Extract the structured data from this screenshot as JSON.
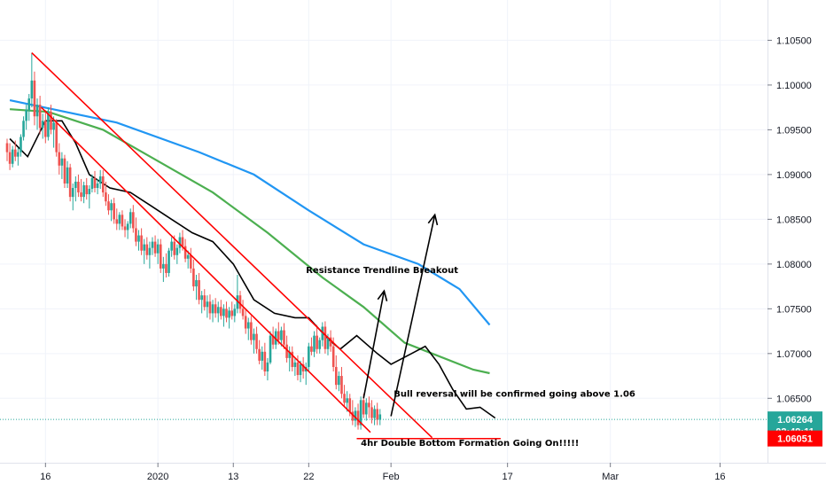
{
  "chart_data": {
    "type": "candlestick",
    "instrument_hint": "price chart with moving averages and trendlines",
    "x_axis": {
      "tick_labels": [
        "16",
        "2020",
        "13",
        "22",
        "Feb",
        "17",
        "Mar",
        "16"
      ]
    },
    "y_axis": {
      "ylim": [
        1.0578,
        1.1095
      ],
      "tick_labels": [
        "1.10500",
        "1.10000",
        "1.09500",
        "1.09000",
        "1.08500",
        "1.08000",
        "1.07500",
        "1.07000",
        "1.06500"
      ],
      "tick_values": [
        1.105,
        1.1,
        1.095,
        1.09,
        1.085,
        1.08,
        1.075,
        1.07,
        1.065
      ]
    },
    "price_badges": [
      {
        "label": "1.06264",
        "value": 1.06264,
        "color": "#26a69a"
      },
      {
        "label": "02:49:11",
        "value": 1.0613,
        "color": "#26a69a"
      },
      {
        "label": "1.06051",
        "value": 1.06051,
        "color": "#ff0000"
      }
    ],
    "moving_averages": [
      {
        "color": "#2196f3",
        "points": [
          [
            0.2,
            1.0983
          ],
          [
            8,
            1.0958
          ],
          [
            14,
            1.0925
          ],
          [
            18,
            1.09
          ],
          [
            22,
            1.086
          ],
          [
            26,
            1.0822
          ],
          [
            30,
            1.08
          ],
          [
            33,
            1.0772
          ],
          [
            35.2,
            1.0732
          ]
        ]
      },
      {
        "color": "#4caf50",
        "points": [
          [
            0.2,
            1.0973
          ],
          [
            3,
            1.097
          ],
          [
            7,
            1.095
          ],
          [
            11,
            1.0915
          ],
          [
            15,
            1.088
          ],
          [
            19,
            1.0835
          ],
          [
            23,
            1.0785
          ],
          [
            26,
            1.0752
          ],
          [
            29,
            1.0712
          ],
          [
            31,
            1.07
          ],
          [
            34,
            1.0682
          ],
          [
            35.2,
            1.0678
          ]
        ]
      },
      {
        "color": "#000000",
        "points": [
          [
            0.2,
            1.094
          ],
          [
            1.5,
            1.092
          ],
          [
            2.8,
            1.096
          ],
          [
            4,
            1.096
          ],
          [
            5,
            1.0935
          ],
          [
            6,
            1.09
          ],
          [
            7.5,
            1.0885
          ],
          [
            9,
            1.088
          ],
          [
            10.5,
            1.0865
          ],
          [
            12,
            1.085
          ],
          [
            13.5,
            1.0835
          ],
          [
            15,
            1.0825
          ],
          [
            16.5,
            1.08
          ],
          [
            18,
            1.076
          ],
          [
            19.5,
            1.0745
          ],
          [
            21,
            1.074
          ],
          [
            22,
            1.074
          ],
          [
            23.5,
            1.0715
          ],
          [
            24.3,
            1.0705
          ],
          [
            25.5,
            1.072
          ],
          [
            27,
            1.07
          ],
          [
            28,
            1.0688
          ],
          [
            29.5,
            1.07
          ],
          [
            30.5,
            1.0708
          ],
          [
            31.5,
            1.0688
          ],
          [
            32.5,
            1.066
          ],
          [
            33.5,
            1.0638
          ],
          [
            34.5,
            1.064
          ],
          [
            35.6,
            1.0628
          ]
        ]
      }
    ],
    "candles": [
      [
        0.0,
        1.0935,
        1.094,
        1.0915,
        1.0925
      ],
      [
        0.2,
        1.0925,
        1.0935,
        1.0905,
        1.0912
      ],
      [
        0.4,
        1.0912,
        1.0932,
        1.0908,
        1.0928
      ],
      [
        0.6,
        1.0928,
        1.0938,
        1.0915,
        1.092
      ],
      [
        0.8,
        1.092,
        1.093,
        1.091,
        1.0925
      ],
      [
        1.0,
        1.0925,
        1.0945,
        1.092,
        1.0942
      ],
      [
        1.2,
        1.0942,
        1.0965,
        1.0938,
        1.096
      ],
      [
        1.4,
        1.096,
        1.0978,
        1.095,
        1.0972
      ],
      [
        1.6,
        1.0972,
        1.099,
        1.096,
        1.0985
      ],
      [
        1.8,
        1.0985,
        1.1036,
        1.0975,
        1.1005
      ],
      [
        2.0,
        1.1005,
        1.1015,
        1.0955,
        1.0965
      ],
      [
        2.2,
        1.0965,
        1.0985,
        1.095,
        1.0978
      ],
      [
        2.4,
        1.0978,
        1.0988,
        1.0945,
        1.0952
      ],
      [
        2.6,
        1.0952,
        1.0968,
        1.094,
        1.096
      ],
      [
        2.8,
        1.096,
        1.0972,
        1.0935,
        1.0942
      ],
      [
        3.0,
        1.0942,
        1.0975,
        1.0938,
        1.097
      ],
      [
        3.2,
        1.097,
        1.0978,
        1.0945,
        1.095
      ],
      [
        3.4,
        1.095,
        1.0965,
        1.093,
        1.0958
      ],
      [
        3.6,
        1.0958,
        1.0962,
        1.092,
        1.0925
      ],
      [
        3.8,
        1.0925,
        1.0935,
        1.09,
        1.091
      ],
      [
        4.0,
        1.091,
        1.0925,
        1.0895,
        1.0918
      ],
      [
        4.2,
        1.0918,
        1.0922,
        1.0885,
        1.089
      ],
      [
        4.4,
        1.089,
        1.0915,
        1.0885,
        1.0908
      ],
      [
        4.6,
        1.0908,
        1.0912,
        1.087,
        1.0875
      ],
      [
        4.8,
        1.0875,
        1.089,
        1.086,
        1.0885
      ],
      [
        5.0,
        1.0885,
        1.0898,
        1.087,
        1.0892
      ],
      [
        5.2,
        1.0892,
        1.09,
        1.0875,
        1.088
      ],
      [
        5.4,
        1.088,
        1.0895,
        1.087,
        1.0875
      ],
      [
        5.6,
        1.0875,
        1.0892,
        1.0868,
        1.0888
      ],
      [
        5.8,
        1.0888,
        1.0896,
        1.0872,
        1.0878
      ],
      [
        6.0,
        1.0878,
        1.0888,
        1.0862,
        1.0884
      ],
      [
        6.2,
        1.0884,
        1.09,
        1.088,
        1.0896
      ],
      [
        6.4,
        1.0896,
        1.0904,
        1.088,
        1.0885
      ],
      [
        6.6,
        1.0885,
        1.0895,
        1.0878,
        1.089
      ],
      [
        6.8,
        1.089,
        1.0905,
        1.0884,
        1.0898
      ],
      [
        7.0,
        1.0898,
        1.0905,
        1.0875,
        1.088
      ],
      [
        7.2,
        1.088,
        1.0892,
        1.0865,
        1.087
      ],
      [
        7.4,
        1.087,
        1.0878,
        1.0855,
        1.086
      ],
      [
        7.6,
        1.086,
        1.0872,
        1.0848,
        1.0868
      ],
      [
        7.8,
        1.0868,
        1.0874,
        1.0845,
        1.085
      ],
      [
        8.0,
        1.085,
        1.0862,
        1.0838,
        1.0845
      ],
      [
        8.2,
        1.0845,
        1.0858,
        1.0838,
        1.0855
      ],
      [
        8.4,
        1.0855,
        1.086,
        1.0838,
        1.0842
      ],
      [
        8.6,
        1.0842,
        1.085,
        1.083,
        1.0838
      ],
      [
        8.8,
        1.0838,
        1.0848,
        1.0828,
        1.0845
      ],
      [
        9.0,
        1.0845,
        1.0862,
        1.084,
        1.0858
      ],
      [
        9.2,
        1.0858,
        1.0866,
        1.0835,
        1.084
      ],
      [
        9.4,
        1.084,
        1.0852,
        1.082,
        1.0825
      ],
      [
        9.6,
        1.0825,
        1.0838,
        1.0815,
        1.0832
      ],
      [
        9.8,
        1.0832,
        1.084,
        1.081,
        1.0815
      ],
      [
        10.0,
        1.0815,
        1.0828,
        1.08,
        1.0822
      ],
      [
        10.2,
        1.0822,
        1.083,
        1.0805,
        1.081
      ],
      [
        10.4,
        1.081,
        1.0825,
        1.0795,
        1.0818
      ],
      [
        10.6,
        1.0818,
        1.083,
        1.081,
        1.0825
      ],
      [
        10.8,
        1.0825,
        1.0832,
        1.0808,
        1.0812
      ],
      [
        11.0,
        1.0812,
        1.0828,
        1.08,
        1.0822
      ],
      [
        11.2,
        1.0822,
        1.0828,
        1.079,
        1.0795
      ],
      [
        11.4,
        1.0795,
        1.0808,
        1.078,
        1.08
      ],
      [
        11.6,
        1.08,
        1.0812,
        1.0785,
        1.079
      ],
      [
        11.8,
        1.079,
        1.0818,
        1.0786,
        1.0815
      ],
      [
        12.0,
        1.0815,
        1.083,
        1.0808,
        1.0825
      ],
      [
        12.2,
        1.0825,
        1.0832,
        1.0805,
        1.081
      ],
      [
        12.4,
        1.081,
        1.0822,
        1.08,
        1.0818
      ],
      [
        12.6,
        1.0818,
        1.0835,
        1.0812,
        1.083
      ],
      [
        12.8,
        1.083,
        1.0838,
        1.0815,
        1.082
      ],
      [
        13.0,
        1.082,
        1.0828,
        1.0802,
        1.0806
      ],
      [
        13.2,
        1.0806,
        1.0815,
        1.0795,
        1.081
      ],
      [
        13.4,
        1.081,
        1.0818,
        1.079,
        1.0795
      ],
      [
        13.6,
        1.0795,
        1.0805,
        1.077,
        1.0775
      ],
      [
        13.8,
        1.0775,
        1.0788,
        1.076,
        1.0782
      ],
      [
        14.0,
        1.0782,
        1.079,
        1.0755,
        1.076
      ],
      [
        14.2,
        1.076,
        1.077,
        1.0745,
        1.0765
      ],
      [
        14.4,
        1.0765,
        1.0772,
        1.0748,
        1.0752
      ],
      [
        14.6,
        1.0752,
        1.0765,
        1.074,
        1.0758
      ],
      [
        14.8,
        1.0758,
        1.0766,
        1.0738,
        1.0745
      ],
      [
        15.0,
        1.0745,
        1.076,
        1.0735,
        1.0755
      ],
      [
        15.2,
        1.0755,
        1.0762,
        1.074,
        1.0745
      ],
      [
        15.4,
        1.0745,
        1.0758,
        1.0735,
        1.0752
      ],
      [
        15.6,
        1.0752,
        1.076,
        1.0738,
        1.0742
      ],
      [
        15.8,
        1.0742,
        1.0755,
        1.073,
        1.075
      ],
      [
        16.0,
        1.075,
        1.0758,
        1.0735,
        1.074
      ],
      [
        16.2,
        1.074,
        1.0752,
        1.0728,
        1.0748
      ],
      [
        16.4,
        1.0748,
        1.0758,
        1.0738,
        1.0742
      ],
      [
        16.6,
        1.0742,
        1.0755,
        1.0735,
        1.075
      ],
      [
        16.8,
        1.075,
        1.0788,
        1.0745,
        1.0765
      ],
      [
        17.0,
        1.0765,
        1.077,
        1.0745,
        1.075
      ],
      [
        17.2,
        1.075,
        1.076,
        1.0738,
        1.0742
      ],
      [
        17.4,
        1.0742,
        1.075,
        1.0722,
        1.0728
      ],
      [
        17.6,
        1.0728,
        1.074,
        1.0715,
        1.0735
      ],
      [
        17.8,
        1.0735,
        1.0742,
        1.071,
        1.0715
      ],
      [
        18.0,
        1.0715,
        1.0728,
        1.07,
        1.0722
      ],
      [
        18.2,
        1.0722,
        1.073,
        1.07,
        1.0705
      ],
      [
        18.4,
        1.0705,
        1.0715,
        1.0688,
        1.0692
      ],
      [
        18.6,
        1.0692,
        1.0708,
        1.0682,
        1.0702
      ],
      [
        18.8,
        1.0702,
        1.0712,
        1.0675,
        1.068
      ],
      [
        19.0,
        1.068,
        1.0695,
        1.067,
        1.069
      ],
      [
        19.2,
        1.069,
        1.0725,
        1.0688,
        1.072
      ],
      [
        19.4,
        1.072,
        1.073,
        1.0705,
        1.071
      ],
      [
        19.6,
        1.071,
        1.0728,
        1.0705,
        1.0725
      ],
      [
        19.8,
        1.0725,
        1.0735,
        1.071,
        1.0715
      ],
      [
        20.0,
        1.0715,
        1.073,
        1.0708,
        1.0726
      ],
      [
        20.2,
        1.0726,
        1.0734,
        1.0705,
        1.071
      ],
      [
        20.4,
        1.071,
        1.072,
        1.069,
        1.0695
      ],
      [
        20.6,
        1.0695,
        1.0708,
        1.068,
        1.0702
      ],
      [
        20.8,
        1.0702,
        1.0708,
        1.068,
        1.0685
      ],
      [
        21.0,
        1.0685,
        1.0695,
        1.0675,
        1.069
      ],
      [
        21.2,
        1.069,
        1.0698,
        1.067,
        1.0676
      ],
      [
        21.4,
        1.0676,
        1.0692,
        1.0668,
        1.0688
      ],
      [
        21.6,
        1.0688,
        1.0696,
        1.0672,
        1.068
      ],
      [
        21.8,
        1.068,
        1.069,
        1.0665,
        1.0685
      ],
      [
        22.0,
        1.0685,
        1.0712,
        1.068,
        1.0708
      ],
      [
        22.2,
        1.0708,
        1.0718,
        1.0698,
        1.0702
      ],
      [
        22.4,
        1.0702,
        1.0725,
        1.0696,
        1.072
      ],
      [
        22.6,
        1.072,
        1.0732,
        1.07,
        1.0705
      ],
      [
        22.8,
        1.0705,
        1.0718,
        1.07,
        1.0715
      ],
      [
        23.0,
        1.0715,
        1.0735,
        1.0708,
        1.073
      ],
      [
        23.2,
        1.073,
        1.0736,
        1.07,
        1.0705
      ],
      [
        23.4,
        1.0705,
        1.0722,
        1.0698,
        1.0718
      ],
      [
        23.6,
        1.0718,
        1.0726,
        1.0702,
        1.0708
      ],
      [
        23.8,
        1.0708,
        1.0718,
        1.068,
        1.0685
      ],
      [
        24.0,
        1.0685,
        1.0698,
        1.066,
        1.0665
      ],
      [
        24.2,
        1.0665,
        1.068,
        1.0658,
        1.0675
      ],
      [
        24.4,
        1.0675,
        1.0685,
        1.065,
        1.0655
      ],
      [
        24.6,
        1.0655,
        1.0665,
        1.064,
        1.0645
      ],
      [
        24.8,
        1.0645,
        1.0658,
        1.0635,
        1.065
      ],
      [
        25.0,
        1.065,
        1.0655,
        1.063,
        1.0635
      ],
      [
        25.2,
        1.0635,
        1.0648,
        1.062,
        1.0625
      ],
      [
        25.4,
        1.0625,
        1.064,
        1.0618,
        1.0636
      ],
      [
        25.6,
        1.0636,
        1.0644,
        1.0615,
        1.062
      ],
      [
        25.8,
        1.062,
        1.0652,
        1.0615,
        1.0648
      ],
      [
        26.0,
        1.0648,
        1.0655,
        1.0628,
        1.0632
      ],
      [
        26.2,
        1.0632,
        1.065,
        1.0625,
        1.0645
      ],
      [
        26.4,
        1.0645,
        1.0652,
        1.0628,
        1.064
      ],
      [
        26.6,
        1.064,
        1.0648,
        1.0622,
        1.0628
      ],
      [
        26.8,
        1.0628,
        1.0642,
        1.062,
        1.0638
      ],
      [
        27.0,
        1.0638,
        1.0645,
        1.062,
        1.0626
      ],
      [
        27.2,
        1.0626,
        1.0638,
        1.062,
        1.0632
      ]
    ],
    "trendlines": [
      {
        "color": "#ff0000",
        "points": [
          [
            1.8,
            1.1036
          ],
          [
            31.0,
            1.0606
          ]
        ]
      },
      {
        "color": "#ff0000",
        "points": [
          [
            2.5,
            1.0975
          ],
          [
            26.5,
            1.0612
          ]
        ]
      },
      {
        "color": "#ff0000",
        "points": [
          [
            25.5,
            1.0605
          ],
          [
            36.0,
            1.0605
          ]
        ]
      }
    ],
    "arrows": [
      {
        "color": "#000000",
        "points": [
          [
            26.0,
            1.065
          ],
          [
            27.5,
            1.077
          ]
        ]
      },
      {
        "color": "#000000",
        "points": [
          [
            28.0,
            1.063
          ],
          [
            31.2,
            1.0855
          ]
        ]
      }
    ],
    "annotations": [
      {
        "text": "Resistance Trendline Breakout",
        "x": 21.8,
        "y": 1.079
      },
      {
        "text": "Bull reversal will be confirmed going above 1.06",
        "x": 28.2,
        "y": 1.0652
      },
      {
        "text": "4hr Double Bottom Formation Going On!!!!!",
        "x": 25.8,
        "y": 1.0597
      }
    ]
  }
}
